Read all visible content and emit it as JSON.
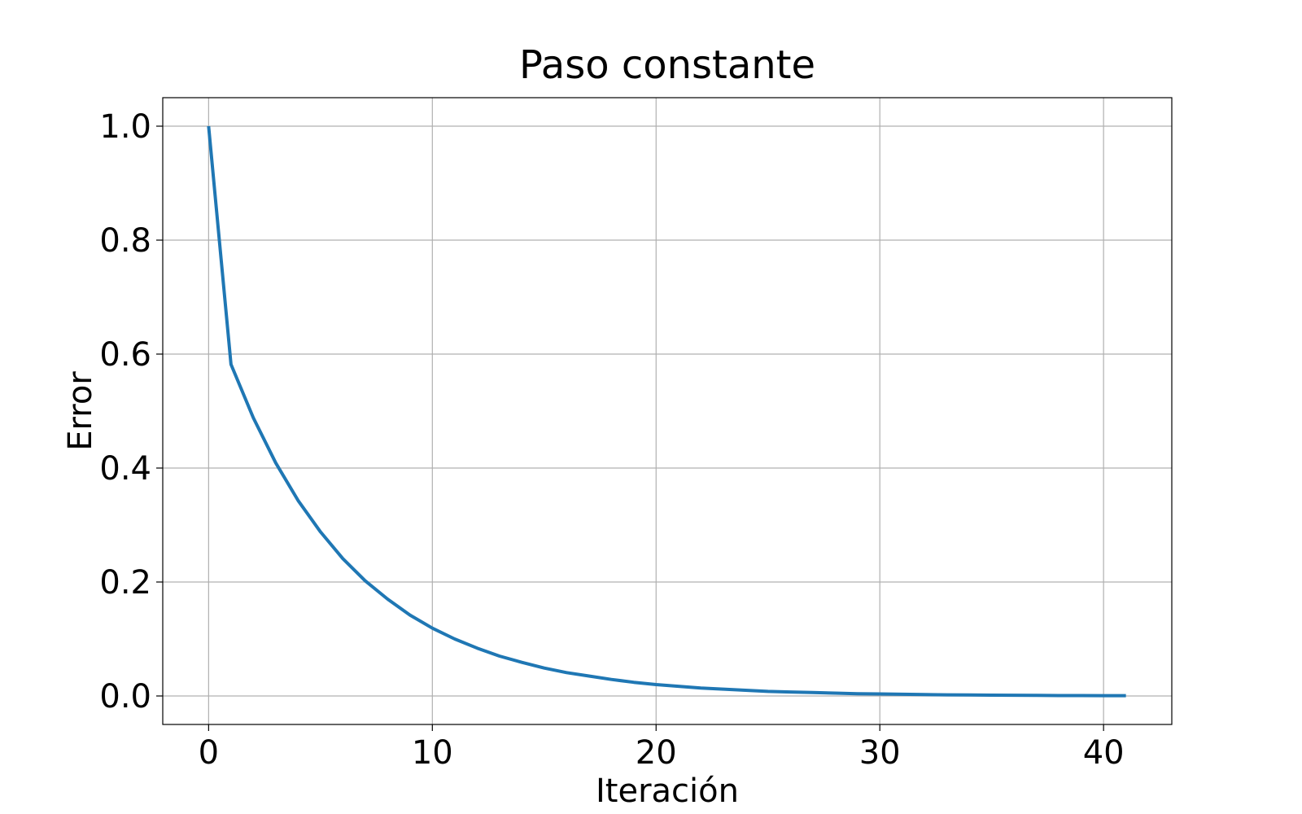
{
  "chart_data": {
    "type": "line",
    "title": "Paso constante",
    "xlabel": "Iteración",
    "ylabel": "Error",
    "xlim": [
      -2.05,
      43.05
    ],
    "ylim": [
      -0.05,
      1.05
    ],
    "xticks": [
      0,
      10,
      20,
      30,
      40
    ],
    "xtick_labels": [
      "0",
      "10",
      "20",
      "30",
      "40"
    ],
    "yticks": [
      0.0,
      0.2,
      0.4,
      0.6,
      0.8,
      1.0
    ],
    "ytick_labels": [
      "0.0",
      "0.2",
      "0.4",
      "0.6",
      "0.8",
      "1.0"
    ],
    "grid": true,
    "legend": "none",
    "series": [
      {
        "color": "#1f77b4",
        "x": [
          0,
          1,
          2,
          3,
          4,
          5,
          6,
          7,
          8,
          9,
          10,
          11,
          12,
          13,
          14,
          15,
          16,
          17,
          18,
          19,
          20,
          21,
          22,
          23,
          24,
          25,
          26,
          27,
          28,
          29,
          30,
          31,
          32,
          33,
          34,
          35,
          36,
          37,
          38,
          39,
          40,
          41
        ],
        "y": [
          1.0,
          0.582,
          0.488,
          0.409,
          0.343,
          0.288,
          0.241,
          0.202,
          0.17,
          0.142,
          0.119,
          0.1,
          0.084,
          0.07,
          0.059,
          0.049,
          0.041,
          0.035,
          0.029,
          0.024,
          0.02,
          0.017,
          0.014,
          0.012,
          0.01,
          0.008,
          0.007,
          0.006,
          0.005,
          0.004,
          0.0035,
          0.003,
          0.0025,
          0.002,
          0.0017,
          0.0014,
          0.0012,
          0.001,
          0.0008,
          0.0007,
          0.0006,
          0.0005
        ]
      }
    ]
  }
}
